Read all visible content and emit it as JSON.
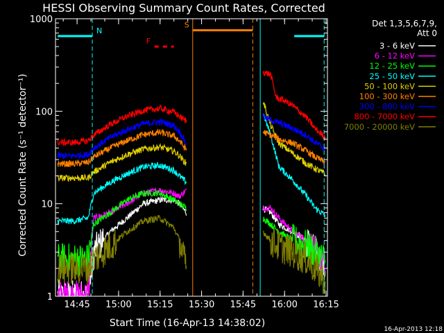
{
  "chart_data": {
    "type": "line",
    "title": "HESSI Observing Summary Count Rates, Corrected",
    "ylabel": "Corrected Count Rate (s⁻¹ detector⁻¹)",
    "xlabel": "Start Time (16-Apr-13 14:38:02)",
    "y_scale": "log",
    "ylim": [
      1,
      1000
    ],
    "xlim_minutes": [
      -0.8,
      97.5
    ],
    "y_tick_labels": [
      "1",
      "10",
      "100",
      "1000"
    ],
    "x_ticks": [
      {
        "label": "14:45",
        "minute": 7
      },
      {
        "label": "15:00",
        "minute": 22
      },
      {
        "label": "15:15",
        "minute": 37
      },
      {
        "label": "15:30",
        "minute": 52
      },
      {
        "label": "15:45",
        "minute": 67
      },
      {
        "label": "16:00",
        "minute": 82
      },
      {
        "label": "16:15",
        "minute": 97
      }
    ],
    "legend": {
      "header": [
        "Det 1,3,5,6,7,9,",
        "Att 0"
      ],
      "placement": "right"
    },
    "date_stamp": "16-Apr-2013 12:18",
    "flags": [
      {
        "label": "N",
        "color": "#00ffff",
        "level": 650,
        "segments": [
          [
            0,
            12.5
          ],
          [
            85.5,
            96.3
          ]
        ]
      },
      {
        "label": "S",
        "color": "#ff8000",
        "level": 750,
        "segments": [
          [
            48.8,
            70.5
          ]
        ]
      },
      {
        "label": "F",
        "color": "#ff0000",
        "level": 500,
        "dashed": true,
        "segments": [
          [
            35,
            42
          ]
        ]
      }
    ],
    "lines": [
      {
        "minute": 12.5,
        "color": "#00ffff",
        "dashed": true
      },
      {
        "minute": 48.8,
        "color": "#ff8000",
        "dashed": false
      },
      {
        "minute": 70.5,
        "color": "#ff8000",
        "dashed": true
      },
      {
        "minute": 73.2,
        "color": "#00ffff",
        "dashed": false
      },
      {
        "minute": 96.3,
        "color": "#00ffff",
        "dashed": true
      }
    ],
    "segments": [
      [
        0,
        46.5
      ],
      [
        74.2,
        96.7
      ]
    ],
    "series": [
      {
        "name": "3 - 6 keV",
        "color": "#ffffff",
        "seg1": [
          [
            0,
            1
          ],
          [
            6,
            1
          ],
          [
            11,
            1
          ],
          [
            13,
            3
          ],
          [
            19,
            5
          ],
          [
            25,
            7
          ],
          [
            31,
            10
          ],
          [
            37,
            11
          ],
          [
            42,
            11
          ],
          [
            44,
            10
          ],
          [
            46.5,
            8
          ]
        ],
        "seg2": [
          [
            74.2,
            9
          ],
          [
            77,
            8
          ],
          [
            80,
            6
          ],
          [
            85,
            5
          ],
          [
            90,
            4
          ],
          [
            93,
            3
          ],
          [
            96.7,
            2
          ]
        ]
      },
      {
        "name": "6 - 12 keV",
        "color": "#ff00ff",
        "seg1": [
          [
            0,
            1
          ],
          [
            6,
            1
          ],
          [
            11,
            1
          ],
          [
            13,
            7
          ],
          [
            19,
            8
          ],
          [
            25,
            10
          ],
          [
            31,
            13
          ],
          [
            37,
            14
          ],
          [
            42,
            13
          ],
          [
            44,
            12
          ],
          [
            46.5,
            14
          ]
        ],
        "seg2": [
          [
            74.2,
            9
          ],
          [
            77,
            9
          ],
          [
            80,
            7
          ],
          [
            85,
            5
          ],
          [
            90,
            4
          ],
          [
            93,
            3
          ],
          [
            96.7,
            2
          ]
        ]
      },
      {
        "name": "12 - 25 keV",
        "color": "#00ff00",
        "seg1": [
          [
            0,
            2.5
          ],
          [
            6,
            2.5
          ],
          [
            11,
            2.5
          ],
          [
            13,
            6
          ],
          [
            19,
            8
          ],
          [
            25,
            11
          ],
          [
            31,
            13
          ],
          [
            37,
            13
          ],
          [
            42,
            11
          ],
          [
            44,
            10
          ],
          [
            46.5,
            9
          ]
        ],
        "seg2": [
          [
            74.2,
            7
          ],
          [
            77,
            6
          ],
          [
            80,
            5
          ],
          [
            85,
            4
          ],
          [
            90,
            3.5
          ],
          [
            93,
            3
          ],
          [
            96.7,
            2.5
          ]
        ]
      },
      {
        "name": "25 - 50 keV",
        "color": "#00ffff",
        "seg1": [
          [
            0,
            6.5
          ],
          [
            6,
            6.5
          ],
          [
            11,
            7
          ],
          [
            13,
            13
          ],
          [
            19,
            17
          ],
          [
            25,
            21
          ],
          [
            31,
            25
          ],
          [
            37,
            26
          ],
          [
            42,
            23
          ],
          [
            44,
            20
          ],
          [
            46.5,
            17
          ]
        ],
        "seg2": [
          [
            74.2,
            95
          ],
          [
            77,
            55
          ],
          [
            80,
            25
          ],
          [
            85,
            18
          ],
          [
            90,
            12
          ],
          [
            93,
            9
          ],
          [
            96.7,
            7.5
          ]
        ]
      },
      {
        "name": "50 - 100 keV",
        "color": "#e0d000",
        "seg1": [
          [
            0,
            19
          ],
          [
            6,
            19
          ],
          [
            11,
            19
          ],
          [
            13,
            22
          ],
          [
            19,
            28
          ],
          [
            25,
            34
          ],
          [
            31,
            39
          ],
          [
            37,
            41
          ],
          [
            42,
            37
          ],
          [
            44,
            33
          ],
          [
            46.5,
            27
          ]
        ],
        "seg2": [
          [
            74.2,
            130
          ],
          [
            77,
            70
          ],
          [
            80,
            45
          ],
          [
            85,
            35
          ],
          [
            90,
            27
          ],
          [
            93,
            24
          ],
          [
            96.7,
            21
          ]
        ]
      },
      {
        "name": "100 - 300 keV",
        "color": "#ff8000",
        "seg1": [
          [
            0,
            27
          ],
          [
            6,
            27
          ],
          [
            11,
            28
          ],
          [
            13,
            32
          ],
          [
            19,
            40
          ],
          [
            25,
            48
          ],
          [
            31,
            56
          ],
          [
            37,
            59
          ],
          [
            42,
            54
          ],
          [
            44,
            48
          ],
          [
            46.5,
            38
          ]
        ],
        "seg2": [
          [
            74.2,
            60
          ],
          [
            77,
            55
          ],
          [
            80,
            50
          ],
          [
            85,
            45
          ],
          [
            90,
            37
          ],
          [
            93,
            32
          ],
          [
            96.7,
            28
          ]
        ]
      },
      {
        "name": "300 - 800 keV",
        "color": "#0000ff",
        "seg1": [
          [
            0,
            33
          ],
          [
            6,
            33
          ],
          [
            11,
            34
          ],
          [
            13,
            40
          ],
          [
            19,
            52
          ],
          [
            25,
            63
          ],
          [
            31,
            73
          ],
          [
            37,
            77
          ],
          [
            42,
            70
          ],
          [
            44,
            60
          ],
          [
            46.5,
            45
          ]
        ],
        "seg2": [
          [
            74.2,
            88
          ],
          [
            77,
            80
          ],
          [
            80,
            75
          ],
          [
            85,
            65
          ],
          [
            90,
            55
          ],
          [
            93,
            46
          ],
          [
            96.7,
            39
          ]
        ]
      },
      {
        "name": "800 - 7000 keV",
        "color": "#ff0000",
        "seg1": [
          [
            0,
            46
          ],
          [
            6,
            46
          ],
          [
            11,
            48
          ],
          [
            13,
            55
          ],
          [
            19,
            72
          ],
          [
            25,
            88
          ],
          [
            31,
            102
          ],
          [
            37,
            107
          ],
          [
            42,
            98
          ],
          [
            44,
            88
          ],
          [
            46.5,
            78
          ]
        ],
        "seg2": [
          [
            74.2,
            265
          ],
          [
            77,
            250
          ],
          [
            79,
            140
          ],
          [
            82,
            130
          ],
          [
            85,
            115
          ],
          [
            90,
            85
          ],
          [
            93,
            65
          ],
          [
            96.7,
            52
          ]
        ]
      },
      {
        "name": "7000 - 20000 keV",
        "color": "#808000",
        "seg1": [
          [
            0,
            2
          ],
          [
            6,
            2
          ],
          [
            11,
            2
          ],
          [
            13,
            2.5
          ],
          [
            19,
            3.5
          ],
          [
            25,
            5
          ],
          [
            31,
            6.5
          ],
          [
            37,
            7
          ],
          [
            42,
            5.5
          ],
          [
            44,
            4
          ],
          [
            46.5,
            2
          ]
        ],
        "seg2": [
          [
            74.2,
            5
          ],
          [
            77,
            4
          ],
          [
            80,
            3.5
          ],
          [
            85,
            3
          ],
          [
            90,
            2.5
          ],
          [
            93,
            2
          ],
          [
            96.7,
            1.5
          ]
        ]
      }
    ]
  }
}
